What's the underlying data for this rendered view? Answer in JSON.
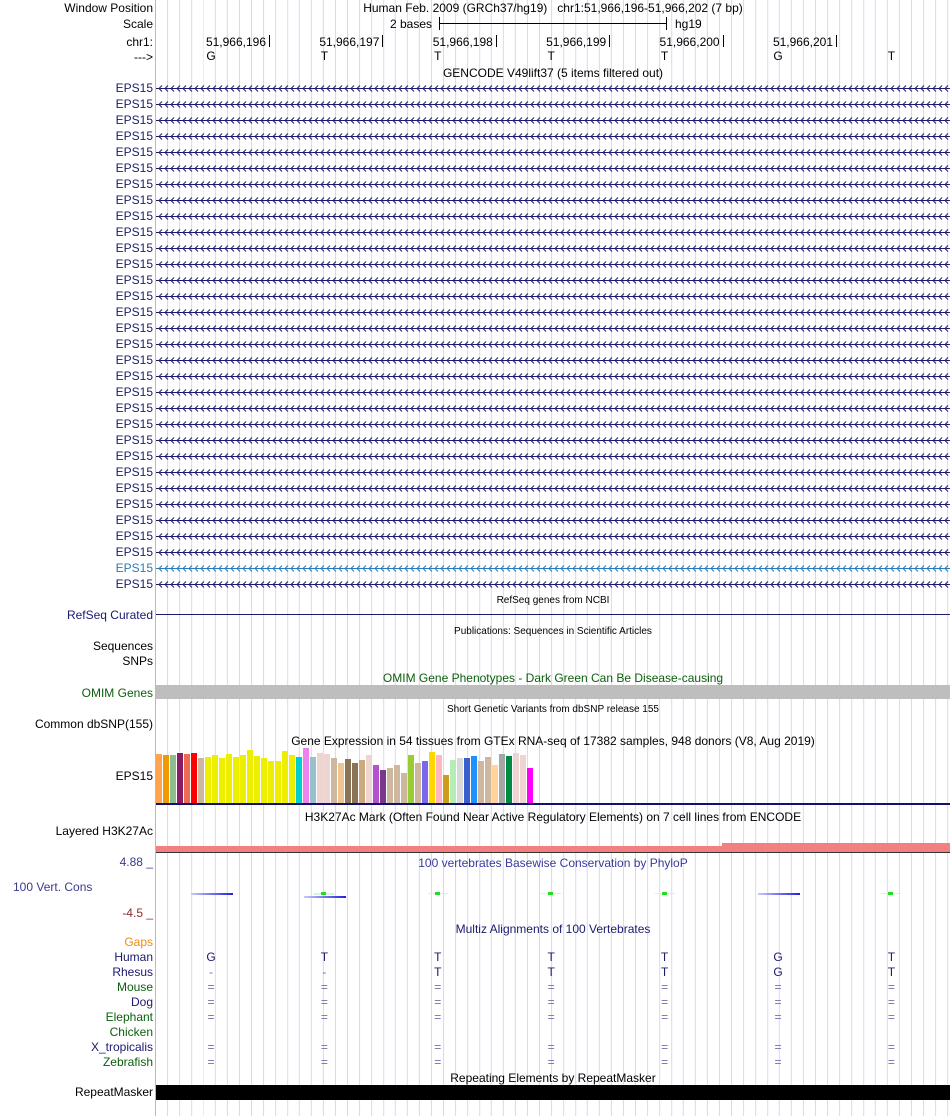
{
  "header": {
    "window_position_label": "Window Position",
    "window_position_text": "Human Feb. 2009 (GRCh37/hg19)   chr1:51,966,196-51,966,202 (7 bp)",
    "scale_label": "Scale",
    "scale_text": "2 bases",
    "scale_assembly": "hg19",
    "chrom_label": "chr1:",
    "strand_label": "--->",
    "coords": [
      "51,966,196",
      "51,966,197",
      "51,966,198",
      "51,966,199",
      "51,966,200",
      "51,966,201"
    ],
    "bases": [
      "G",
      "T",
      "T",
      "T",
      "T",
      "G",
      "T"
    ]
  },
  "gencode": {
    "title": "GENCODE V49lift37 (5 items filtered out)",
    "gene": "EPS15",
    "row_count": 32,
    "highlighted_row": 30,
    "color": "#1a1a6e",
    "highlight_color": "#2a7ab8"
  },
  "refseq": {
    "title": "RefSeq genes from NCBI",
    "label": "RefSeq Curated"
  },
  "publications": {
    "title": "Publications: Sequences in Scientific Articles",
    "labels": [
      "Sequences",
      "SNPs"
    ]
  },
  "omim": {
    "title": "OMIM Gene Phenotypes - Dark Green Can Be Disease-causing",
    "label": "OMIM Genes"
  },
  "dbsnp": {
    "title": "Short Genetic Variants from dbSNP release 155",
    "label": "Common dbSNP(155)"
  },
  "gtex": {
    "title": "Gene Expression in 54 tissues from GTEx RNA-seq of 17382 samples, 948 donors (V8, Aug 2019)",
    "label": "EPS15"
  },
  "h3k27ac": {
    "title": "H3K27Ac Mark (Often Found Near Active Regulatory Elements) on 7 cell lines from ENCODE",
    "label": "Layered H3K27Ac"
  },
  "phylop": {
    "title": "100 vertebrates Basewise Conservation by PhyloP",
    "label": "100 Vert. Cons",
    "max": "4.88 _",
    "min": "-4.5 _",
    "scores": [
      -0.8,
      -1.4,
      0.1,
      0.1,
      0.1,
      -0.8,
      0.1
    ]
  },
  "multiz": {
    "title": "Multiz Alignments of 100 Vertebrates",
    "gaps_label": "Gaps",
    "species": [
      {
        "name": "Human",
        "color": "#1a1a6e",
        "bases": [
          "G",
          "T",
          "T",
          "T",
          "T",
          "G",
          "T"
        ]
      },
      {
        "name": "Rhesus",
        "color": "#1a1a6e",
        "bases": [
          "-",
          "-",
          "T",
          "T",
          "T",
          "G",
          "T"
        ]
      },
      {
        "name": "Mouse",
        "color": "#0b5f0b",
        "bases": [
          "=",
          "=",
          "=",
          "=",
          "=",
          "=",
          "="
        ]
      },
      {
        "name": "Dog",
        "color": "#1a1a6e",
        "bases": [
          "=",
          "=",
          "=",
          "=",
          "=",
          "=",
          "="
        ]
      },
      {
        "name": "Elephant",
        "color": "#0b5f0b",
        "bases": [
          "=",
          "=",
          "=",
          "=",
          "=",
          "=",
          "="
        ]
      },
      {
        "name": "Chicken",
        "color": "#0b5f0b",
        "bases": [
          "",
          "",
          "",
          "",
          "",
          "",
          ""
        ]
      },
      {
        "name": "X_tropicalis",
        "color": "#1a1a6e",
        "bases": [
          "=",
          "=",
          "=",
          "=",
          "=",
          "=",
          "="
        ]
      },
      {
        "name": "Zebrafish",
        "color": "#0b5f0b",
        "bases": [
          "=",
          "=",
          "=",
          "=",
          "=",
          "=",
          "="
        ]
      }
    ]
  },
  "repeatmasker": {
    "title": "Repeating Elements by RepeatMasker",
    "label": "RepeatMasker"
  },
  "chart_data": {
    "type": "bar",
    "title": "Gene Expression in 54 tissues from GTEx RNA-seq of 17382 samples, 948 donors (V8, Aug 2019)",
    "values": [
      49,
      48,
      48,
      50,
      49,
      50,
      45,
      46,
      48,
      45,
      49,
      46,
      48,
      53,
      47,
      45,
      42,
      42,
      52,
      48,
      46,
      55,
      46,
      50,
      49,
      45,
      40,
      44,
      40,
      43,
      48,
      38,
      33,
      35,
      38,
      30,
      48,
      40,
      42,
      51,
      48,
      28,
      43,
      45,
      45,
      47,
      42,
      46,
      38,
      49,
      47,
      50,
      48,
      35
    ],
    "colors": [
      "#FFA54F",
      "#EE9A00",
      "#8FBC8F",
      "#8B1C62",
      "#EE6A50",
      "#FF0000",
      "#CDB79E",
      "#EEEE00",
      "#EEEE00",
      "#EEEE00",
      "#EEEE00",
      "#EEEE00",
      "#EEEE00",
      "#EEEE00",
      "#EEEE00",
      "#EEEE00",
      "#EEEE00",
      "#EEEE00",
      "#EEEE00",
      "#EEEE00",
      "#00CDCD",
      "#EE82EE",
      "#9AC0CD",
      "#EED5D2",
      "#EED5D2",
      "#CDB79E",
      "#EEC591",
      "#8B7355",
      "#8B7355",
      "#CDAA7D",
      "#EED5D2",
      "#B452CD",
      "#7A378B",
      "#CDB79E",
      "#CDB79E",
      "#CDB79E",
      "#9ACD32",
      "#CDB79E",
      "#7A67EE",
      "#FFD700",
      "#FFB6C1",
      "#CD9B1D",
      "#B4EEB4",
      "#D9D9D9",
      "#3A5FCD",
      "#1E90FF",
      "#CDB79E",
      "#CDB79E",
      "#FFD39B",
      "#A6A6A6",
      "#008B45",
      "#EED5D2",
      "#EED5D2",
      "#FF00FF"
    ]
  }
}
